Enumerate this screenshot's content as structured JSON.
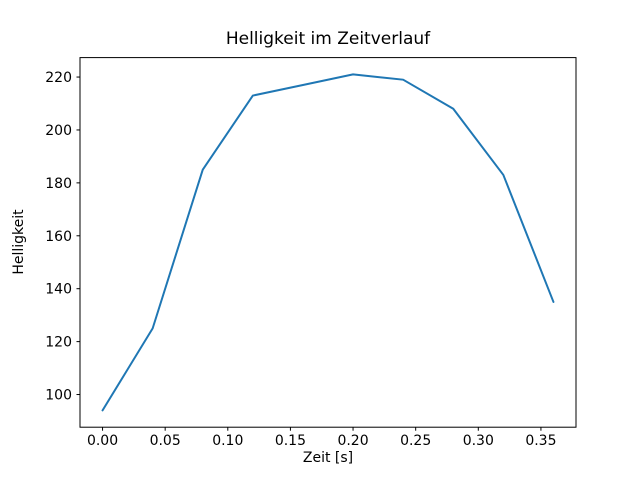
{
  "figure": {
    "title": "Helligkeit im Zeitverlauf",
    "xlabel": "Zeit [s]",
    "ylabel": "Helligkeit"
  },
  "chart_data": {
    "type": "line",
    "title": "Helligkeit im Zeitverlauf",
    "xlabel": "Zeit [s]",
    "ylabel": "Helligkeit",
    "x": [
      0.0,
      0.04,
      0.08,
      0.12,
      0.16,
      0.2,
      0.24,
      0.28,
      0.32,
      0.36
    ],
    "y": [
      94,
      125,
      185,
      213,
      217,
      221,
      219,
      208,
      183,
      135
    ],
    "series": [
      {
        "name": "Helligkeit",
        "values": [
          94,
          125,
          185,
          213,
          217,
          221,
          219,
          208,
          183,
          135
        ]
      }
    ],
    "xlim": [
      -0.018,
      0.378
    ],
    "ylim": [
      87.65,
      227.35
    ],
    "xticks": [
      0.0,
      0.05,
      0.1,
      0.15,
      0.2,
      0.25,
      0.3,
      0.35
    ],
    "yticks": [
      100,
      120,
      140,
      160,
      180,
      200,
      220
    ],
    "xtick_labels": [
      "0.00",
      "0.05",
      "0.10",
      "0.15",
      "0.20",
      "0.25",
      "0.30",
      "0.35"
    ],
    "ytick_labels": [
      "100",
      "120",
      "140",
      "160",
      "180",
      "200",
      "220"
    ],
    "line_color": "#1f77b4",
    "axis_color": "#000000",
    "background_color": "#ffffff",
    "grid": false,
    "legend_position": "none"
  }
}
